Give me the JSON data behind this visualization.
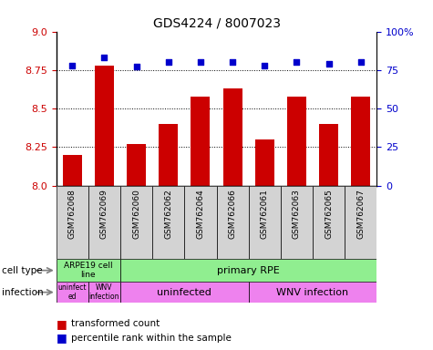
{
  "title": "GDS4224 / 8007023",
  "samples": [
    "GSM762068",
    "GSM762069",
    "GSM762060",
    "GSM762062",
    "GSM762064",
    "GSM762066",
    "GSM762061",
    "GSM762063",
    "GSM762065",
    "GSM762067"
  ],
  "transformed_counts": [
    8.2,
    8.78,
    8.27,
    8.4,
    8.58,
    8.63,
    8.3,
    8.58,
    8.4,
    8.58
  ],
  "percentile_ranks": [
    78,
    83,
    77,
    80,
    80,
    80,
    78,
    80,
    79,
    80
  ],
  "ylim_left": [
    8.0,
    9.0
  ],
  "ylim_right": [
    0,
    100
  ],
  "yticks_left": [
    8.0,
    8.25,
    8.5,
    8.75,
    9.0
  ],
  "yticks_right": [
    0,
    25,
    50,
    75,
    100
  ],
  "bar_color": "#cc0000",
  "dot_color": "#0000cc",
  "legend_items": [
    "transformed count",
    "percentile rank within the sample"
  ],
  "grid_dotted_at": [
    8.25,
    8.5,
    8.75
  ],
  "cell_type_spans": [
    [
      0,
      2,
      "ARPE19 cell\nline",
      "#90ee90"
    ],
    [
      2,
      10,
      "primary RPE",
      "#90ee90"
    ]
  ],
  "infection_spans": [
    [
      0,
      1,
      "uninfect\ned",
      "#ee82ee"
    ],
    [
      1,
      2,
      "WNV\ninfection",
      "#ee82ee"
    ],
    [
      2,
      6,
      "uninfected",
      "#ee82ee"
    ],
    [
      6,
      10,
      "WNV infection",
      "#ee82ee"
    ]
  ]
}
